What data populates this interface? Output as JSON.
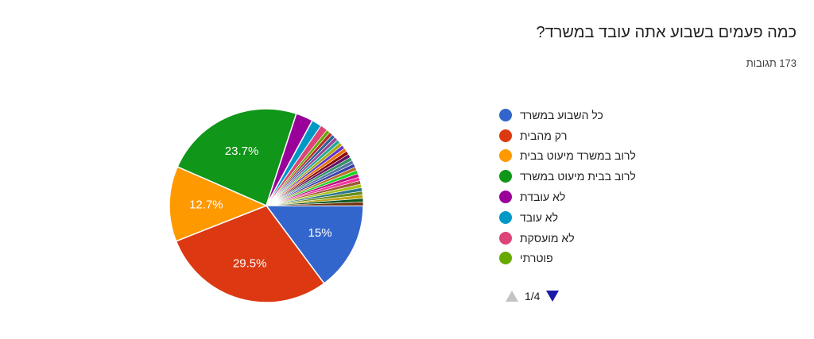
{
  "question": {
    "title": "כמה פעמים בשבוע אתה עובד במשרד?",
    "responses": "173 תגובות"
  },
  "chart_data": {
    "type": "pie",
    "slices": [
      {
        "label": "כל השבוע במשרד",
        "value": 15,
        "color": "#3366cc",
        "label_text": "15%"
      },
      {
        "label": "רק מהבית",
        "value": 29.5,
        "color": "#dc3912",
        "label_text": "29.5%"
      },
      {
        "label": "לרוב במשרד מיעוט בבית",
        "value": 12.7,
        "color": "#ff9900",
        "label_text": "12.7%"
      },
      {
        "label": "לרוב בבית מיעוט במשרד",
        "value": 23.7,
        "color": "#109618",
        "label_text": "23.7%"
      },
      {
        "label": "לא עובדת",
        "value": 2.9,
        "color": "#990099",
        "label_text": ""
      },
      {
        "label": "לא עובד",
        "value": 1.7,
        "color": "#0099c6",
        "label_text": ""
      },
      {
        "label": "לא מועסקת",
        "value": 1.2,
        "color": "#dd4477",
        "label_text": ""
      },
      {
        "label": "פוטרתי",
        "value": 0.6,
        "color": "#66aa00",
        "label_text": ""
      },
      {
        "value": 0.6,
        "color": "#b82e2e"
      },
      {
        "value": 0.6,
        "color": "#316395"
      },
      {
        "value": 0.6,
        "color": "#994499"
      },
      {
        "value": 0.6,
        "color": "#22aa99"
      },
      {
        "value": 0.6,
        "color": "#aaaa11"
      },
      {
        "value": 0.6,
        "color": "#6633cc"
      },
      {
        "value": 0.6,
        "color": "#e67300"
      },
      {
        "value": 0.6,
        "color": "#8b0707"
      },
      {
        "value": 0.6,
        "color": "#651067"
      },
      {
        "value": 0.6,
        "color": "#329262"
      },
      {
        "value": 0.6,
        "color": "#5574a6"
      },
      {
        "value": 0.6,
        "color": "#3b3eac"
      },
      {
        "value": 0.6,
        "color": "#b77322"
      },
      {
        "value": 0.6,
        "color": "#16d620"
      },
      {
        "value": 0.6,
        "color": "#b91383"
      },
      {
        "value": 0.6,
        "color": "#f4359e"
      },
      {
        "value": 0.6,
        "color": "#9c5935"
      },
      {
        "value": 0.6,
        "color": "#a9c413"
      },
      {
        "value": 0.6,
        "color": "#2a778d"
      },
      {
        "value": 0.6,
        "color": "#668d1c"
      },
      {
        "value": 0.6,
        "color": "#bea413"
      },
      {
        "value": 0.6,
        "color": "#0c5922"
      },
      {
        "value": 0.6,
        "color": "#743411"
      }
    ],
    "legend_placement": "right"
  },
  "legend": {
    "items": [
      {
        "label": "כל השבוע במשרד",
        "color": "#3366cc"
      },
      {
        "label": "רק מהבית",
        "color": "#dc3912"
      },
      {
        "label": "לרוב במשרד מיעוט בבית",
        "color": "#ff9900"
      },
      {
        "label": "לרוב בבית מיעוט במשרד",
        "color": "#109618"
      },
      {
        "label": "לא עובדת",
        "color": "#990099"
      },
      {
        "label": "לא עובד",
        "color": "#0099c6"
      },
      {
        "label": "לא מועסקת",
        "color": "#dd4477"
      },
      {
        "label": "פוטרתי",
        "color": "#66aa00"
      }
    ],
    "page": "1/4"
  }
}
